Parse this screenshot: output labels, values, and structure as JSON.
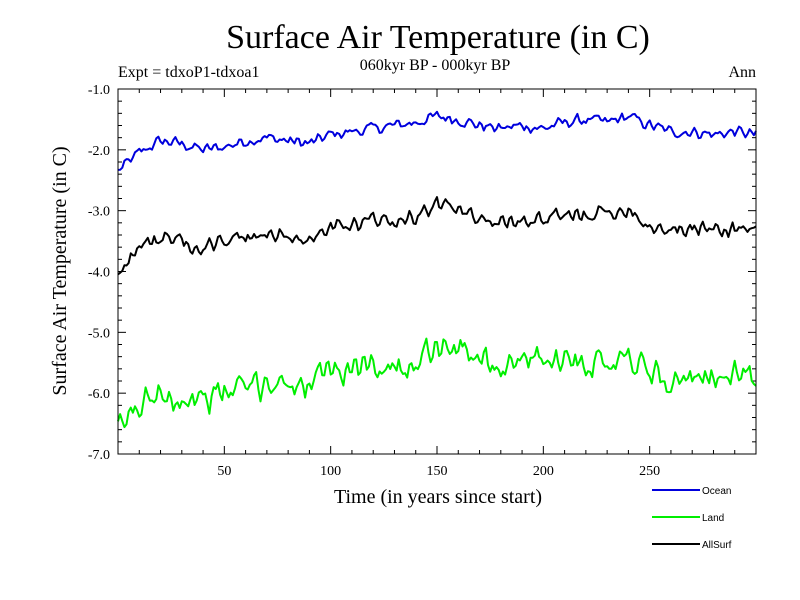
{
  "chart_data": {
    "type": "line",
    "title": "Surface Air Temperature (in C)",
    "subtitle": "060kyr BP - 000kyr BP",
    "experiment": "Expt = tdxoP1-tdxoa1",
    "season": "Ann",
    "xlabel": "Time (in years since start)",
    "ylabel": "Surface Air Temperature (in C)",
    "xlim": [
      0,
      300
    ],
    "ylim": [
      -7.0,
      -1.0
    ],
    "x_ticks": [
      50,
      100,
      150,
      200,
      250
    ],
    "y_ticks": [
      -1.0,
      -2.0,
      -3.0,
      -4.0,
      -5.0,
      -6.0,
      -7.0
    ],
    "y_tick_labels": [
      "-1.0",
      "-2.0",
      "-3.0",
      "-4.0",
      "-5.0",
      "-6.0",
      "-7.0"
    ],
    "grid": false,
    "legend_position": "bottom-right",
    "x": [
      0,
      10,
      20,
      30,
      40,
      50,
      60,
      70,
      80,
      90,
      100,
      110,
      120,
      130,
      140,
      150,
      160,
      170,
      180,
      190,
      200,
      210,
      220,
      230,
      240,
      250,
      260,
      270,
      280,
      290,
      300
    ],
    "series": [
      {
        "name": "Ocean",
        "color": "#0000dd",
        "values": [
          -2.35,
          -2.05,
          -1.85,
          -1.9,
          -2.0,
          -1.95,
          -1.85,
          -1.8,
          -1.85,
          -1.9,
          -1.75,
          -1.7,
          -1.65,
          -1.6,
          -1.55,
          -1.45,
          -1.5,
          -1.6,
          -1.65,
          -1.6,
          -1.65,
          -1.55,
          -1.5,
          -1.55,
          -1.45,
          -1.6,
          -1.7,
          -1.7,
          -1.75,
          -1.7,
          -1.75
        ]
      },
      {
        "name": "Land",
        "color": "#00ee00",
        "values": [
          -6.6,
          -6.2,
          -5.95,
          -6.1,
          -6.1,
          -6.0,
          -5.9,
          -5.85,
          -5.8,
          -5.9,
          -5.65,
          -5.6,
          -5.5,
          -5.6,
          -5.45,
          -5.2,
          -5.25,
          -5.4,
          -5.55,
          -5.5,
          -5.45,
          -5.4,
          -5.5,
          -5.45,
          -5.35,
          -5.65,
          -5.8,
          -5.85,
          -5.7,
          -5.7,
          -5.75
        ]
      },
      {
        "name": "AllSurf",
        "color": "#000000",
        "values": [
          -4.0,
          -3.6,
          -3.45,
          -3.55,
          -3.6,
          -3.5,
          -3.45,
          -3.4,
          -3.4,
          -3.5,
          -3.3,
          -3.25,
          -3.15,
          -3.15,
          -3.1,
          -2.9,
          -2.95,
          -3.1,
          -3.2,
          -3.15,
          -3.15,
          -3.1,
          -3.05,
          -3.05,
          -2.95,
          -3.25,
          -3.3,
          -3.3,
          -3.3,
          -3.3,
          -3.3
        ]
      }
    ]
  }
}
